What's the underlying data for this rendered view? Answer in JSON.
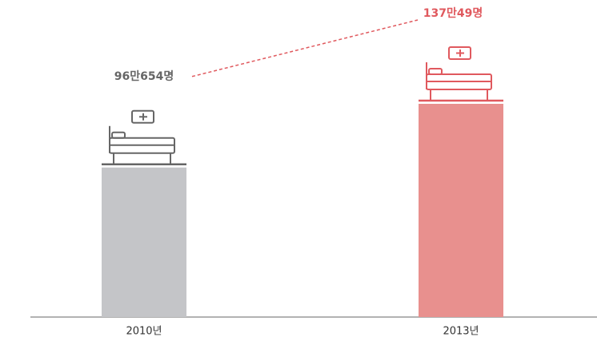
{
  "chart_data": {
    "type": "bar",
    "categories": [
      "2010년",
      "2013년"
    ],
    "values": [
      960654,
      1370049
    ],
    "value_labels": [
      "96만654명",
      "137만49명"
    ],
    "colors": [
      "#c4c5c8",
      "#e8908e"
    ],
    "label_colors": [
      "#666666",
      "#e0595e"
    ]
  }
}
